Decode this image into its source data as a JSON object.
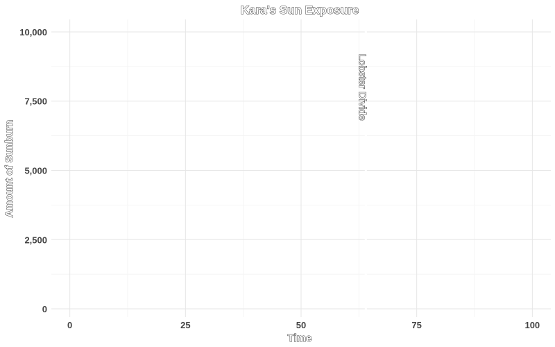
{
  "chart_data": {
    "type": "line",
    "title": "Kara's Sun Exposure",
    "xlabel": "Time",
    "ylabel": "Amount of Sunburn",
    "xlim": [
      -4,
      104
    ],
    "ylim": [
      -300,
      10450
    ],
    "x_ticks": [
      0,
      25,
      50,
      75,
      100
    ],
    "x_tick_labels": [
      "0",
      "25",
      "50",
      "75",
      "100"
    ],
    "y_ticks": [
      0,
      2500,
      5000,
      7500,
      10000
    ],
    "y_tick_labels": [
      "0",
      "2,500",
      "5,000",
      "7,500",
      "10,000"
    ],
    "grid": true,
    "series": [],
    "annotations": [
      {
        "type": "vline",
        "x": 64,
        "color": "#ffffff"
      },
      {
        "type": "text",
        "x": 62.5,
        "y": 8000,
        "label": "Lobster Divide",
        "rotation": 90
      }
    ]
  }
}
